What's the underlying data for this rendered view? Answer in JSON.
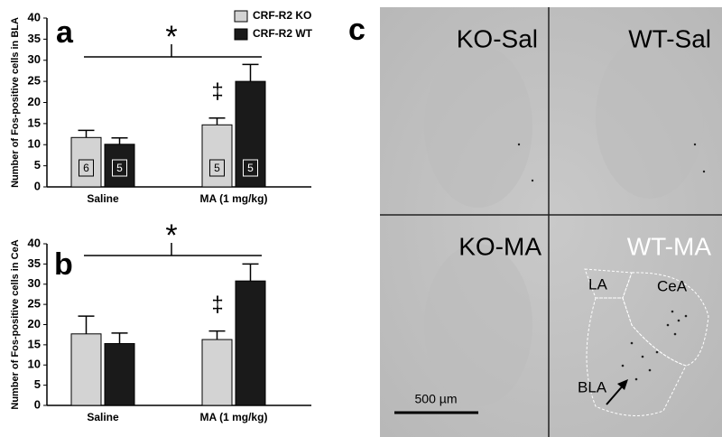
{
  "panel_labels": [
    "a",
    "b",
    "c"
  ],
  "chart_data": [
    {
      "type": "bar",
      "y_label": "Number of Fos-positive cells in BLA",
      "categories": [
        "Saline",
        "MA (1 mg/kg)"
      ],
      "series": [
        {
          "name": "CRF-R2 KO",
          "color": "#d3d3d3",
          "values": [
            11.7,
            14.7
          ],
          "errors": [
            1.7,
            1.6
          ],
          "n": [
            6,
            5
          ]
        },
        {
          "name": "CRF-R2 WT",
          "color": "#1a1a1a",
          "values": [
            10.1,
            25
          ],
          "errors": [
            1.5,
            4
          ],
          "n": [
            5,
            5
          ]
        }
      ],
      "ylim": [
        0,
        40
      ],
      "yticks": [
        0,
        5,
        10,
        15,
        20,
        25,
        30,
        35,
        40
      ],
      "legend": "top-right",
      "significance_marker": "*",
      "post_hoc_marker": "‡"
    },
    {
      "type": "bar",
      "y_label": "Number of Fos-positive cells in CeA",
      "categories": [
        "Saline",
        "MA (1 mg/kg)"
      ],
      "series": [
        {
          "color": "#d3d3d3",
          "values": [
            17.7,
            16.3
          ],
          "errors": [
            4.4,
            2.1
          ]
        },
        {
          "color": "#1a1a1a",
          "values": [
            15.3,
            30.8
          ],
          "errors": [
            2.6,
            4.2
          ]
        }
      ],
      "ylim": [
        0,
        40
      ],
      "yticks": [
        0,
        5,
        10,
        15,
        20,
        25,
        30,
        35,
        40
      ],
      "significance_marker": "*",
      "post_hoc_marker": "‡"
    }
  ],
  "micrograph": {
    "panels": [
      "KO-Sal",
      "WT-Sal",
      "KO-MA",
      "WT-MA"
    ],
    "regions": [
      "LA",
      "CeA",
      "BLA"
    ],
    "scale_bar": "500 µm"
  }
}
